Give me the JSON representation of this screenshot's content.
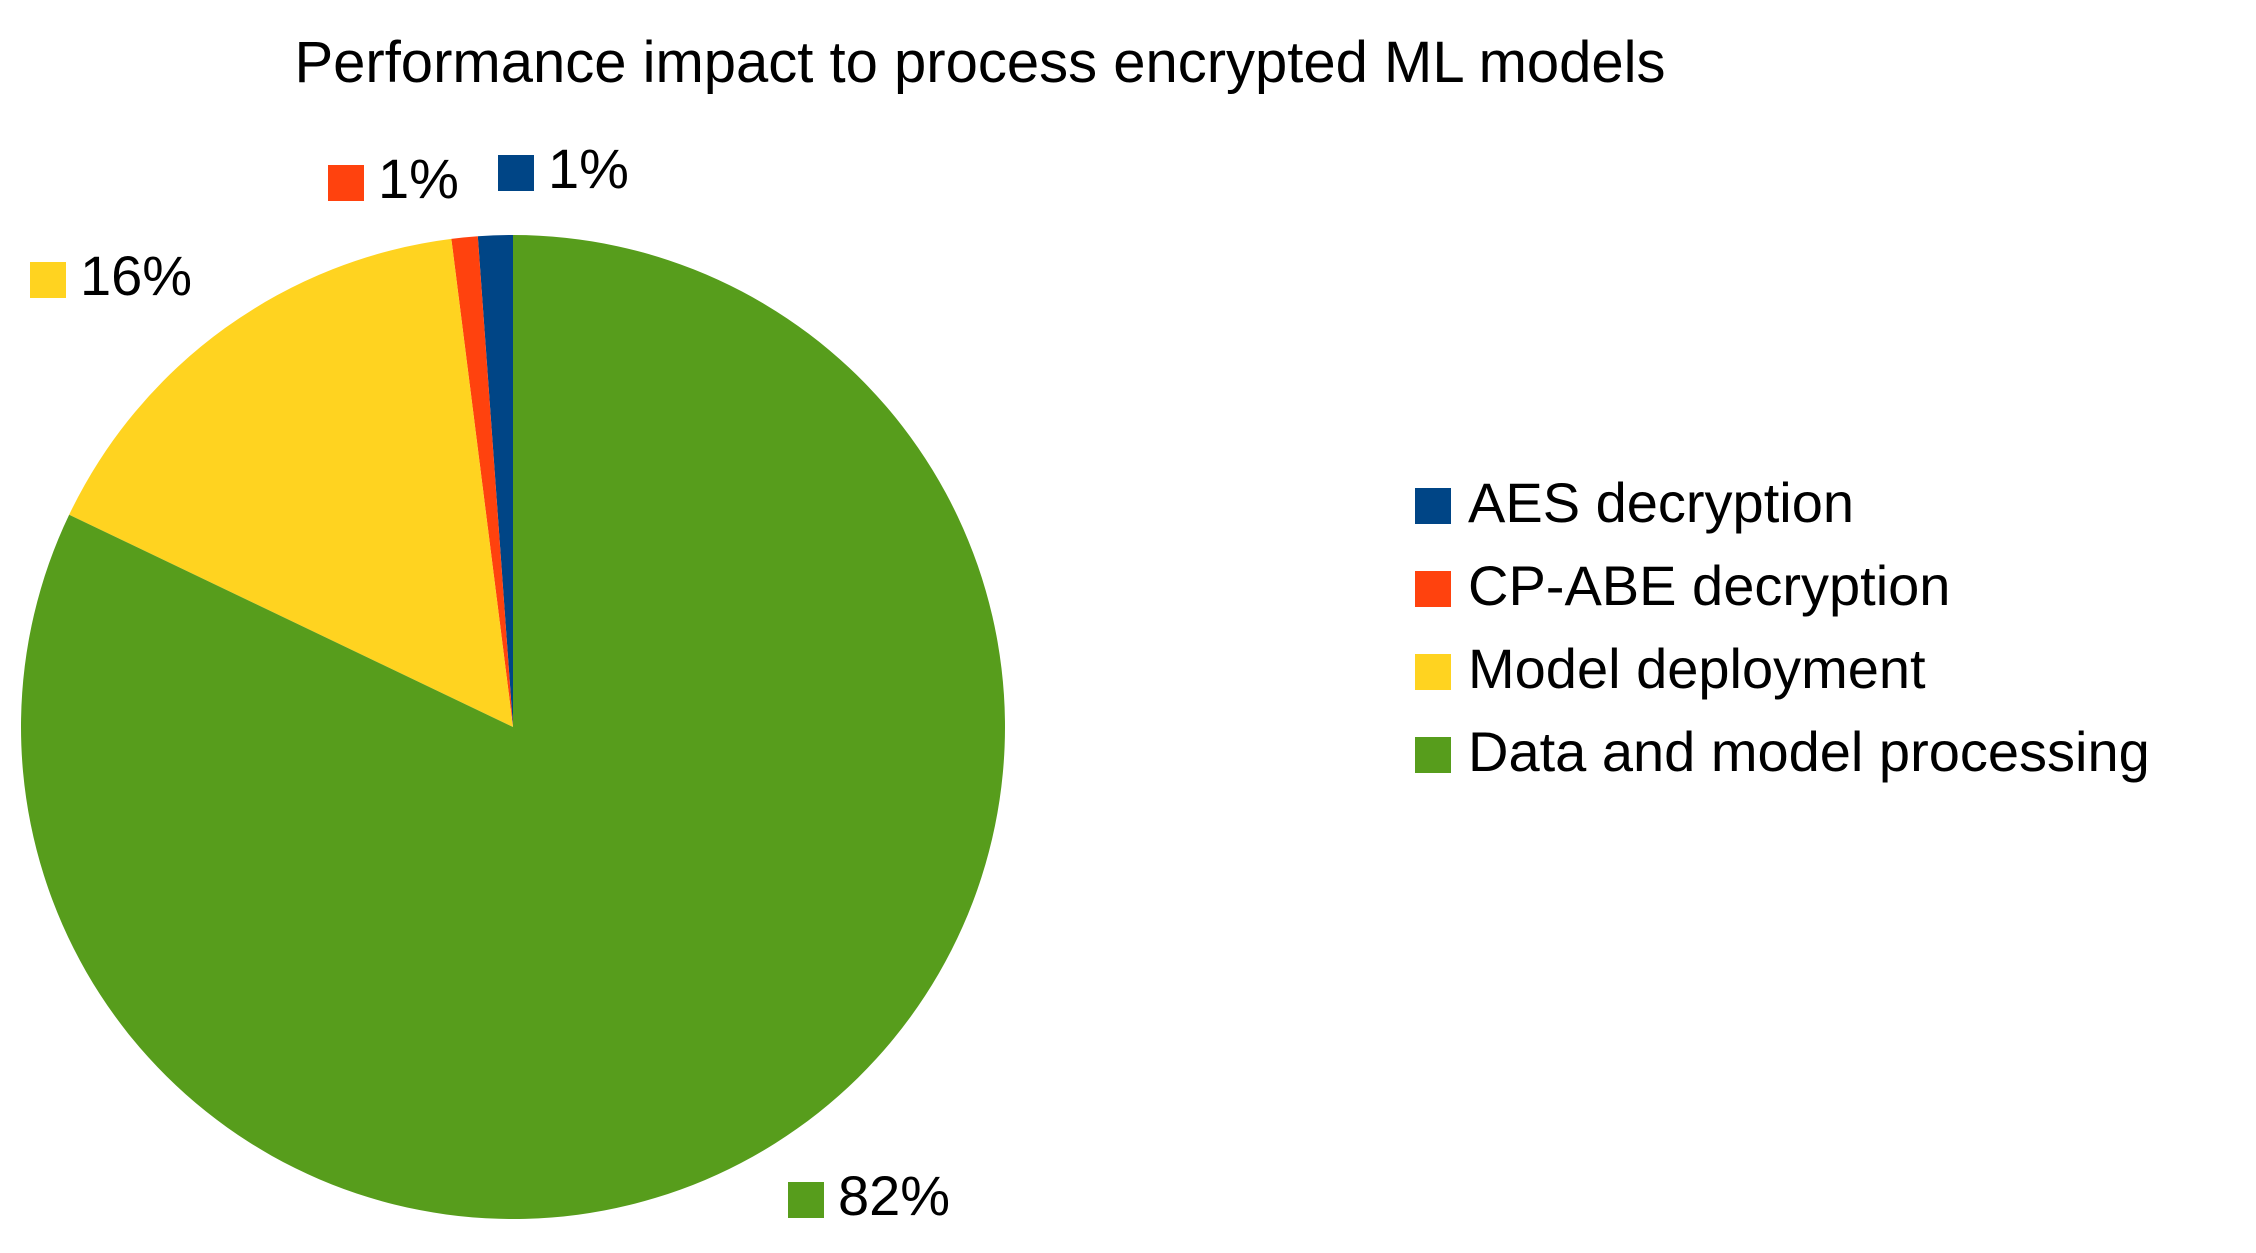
{
  "chart_data": {
    "type": "pie",
    "title": "Performance impact to process encrypted ML models",
    "slices": [
      {
        "name": "AES decryption",
        "value": 1.14,
        "label": "1%",
        "color": "#004586"
      },
      {
        "name": "CP-ABE decryption",
        "value": 0.86,
        "label": "1%",
        "color": "#ff420e"
      },
      {
        "name": "Model deployment",
        "value": 15.9,
        "label": "16%",
        "color": "#ffd320"
      },
      {
        "name": "Data and model processing",
        "value": 82.1,
        "label": "82%",
        "color": "#579d1c"
      }
    ],
    "start_angle_deg": 0,
    "direction": "counterclockwise",
    "legend_position": "right",
    "data_labels": "outside"
  }
}
